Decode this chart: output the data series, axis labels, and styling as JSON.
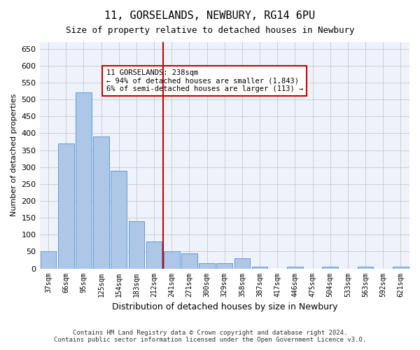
{
  "title1": "11, GORSELANDS, NEWBURY, RG14 6PU",
  "title2": "Size of property relative to detached houses in Newbury",
  "xlabel": "Distribution of detached houses by size in Newbury",
  "ylabel": "Number of detached properties",
  "categories": [
    "37sqm",
    "66sqm",
    "95sqm",
    "125sqm",
    "154sqm",
    "183sqm",
    "212sqm",
    "241sqm",
    "271sqm",
    "300sqm",
    "329sqm",
    "358sqm",
    "387sqm",
    "417sqm",
    "446sqm",
    "475sqm",
    "504sqm",
    "533sqm",
    "563sqm",
    "592sqm",
    "621sqm"
  ],
  "values": [
    50,
    370,
    520,
    390,
    290,
    140,
    80,
    50,
    45,
    15,
    15,
    30,
    5,
    0,
    5,
    0,
    5,
    0,
    5,
    0,
    5
  ],
  "bar_color": "#aec6e8",
  "bar_edge_color": "#5b9bd5",
  "grid_color": "#cccccc",
  "bg_color": "#eef3fb",
  "vline_x_index": 7,
  "annotation_text": "11 GORSELANDS: 238sqm\n← 94% of detached houses are smaller (1,843)\n6% of semi-detached houses are larger (113) →",
  "annotation_box_color": "#ffffff",
  "annotation_box_edge": "#cc0000",
  "vline_color": "#cc0000",
  "ylim": [
    0,
    670
  ],
  "footnote1": "Contains HM Land Registry data © Crown copyright and database right 2024.",
  "footnote2": "Contains public sector information licensed under the Open Government Licence v3.0."
}
